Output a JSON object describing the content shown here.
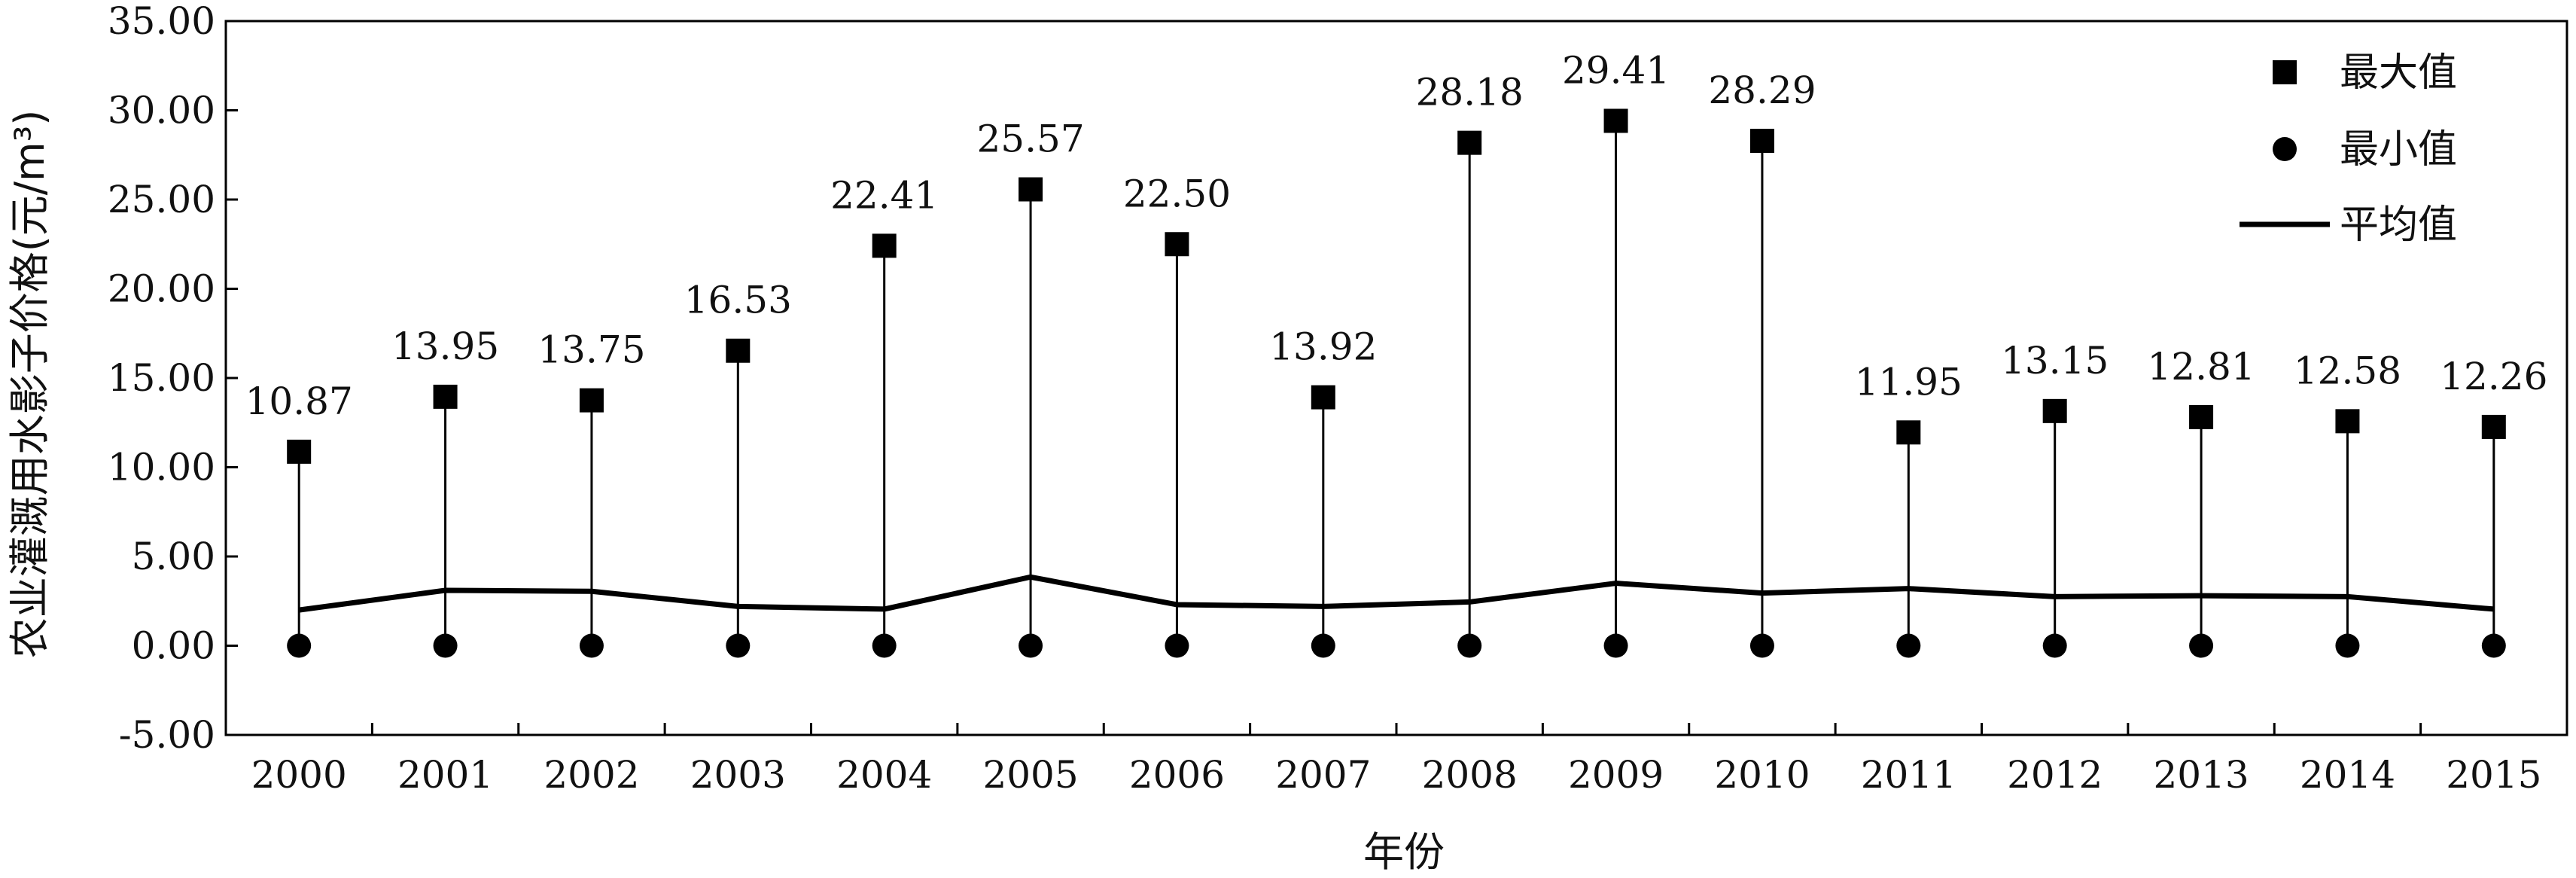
{
  "chart_data": {
    "type": "line",
    "title": "",
    "xlabel": "年份",
    "ylabel": "农业灌溉用水影子价格(元/m³)",
    "categories": [
      "2000",
      "2001",
      "2002",
      "2003",
      "2004",
      "2005",
      "2006",
      "2007",
      "2008",
      "2009",
      "2010",
      "2011",
      "2012",
      "2013",
      "2014",
      "2015"
    ],
    "ylim": [
      -5.0,
      35.0
    ],
    "yticks": [
      "-5.00",
      "0.00",
      "5.00",
      "10.00",
      "15.00",
      "20.00",
      "25.00",
      "30.00",
      "35.00"
    ],
    "ytick_values": [
      -5,
      0,
      5,
      10,
      15,
      20,
      25,
      30,
      35
    ],
    "grid": false,
    "legend_position": "top-right",
    "series": [
      {
        "name": "最大值",
        "marker": "square",
        "values": [
          10.87,
          13.95,
          13.75,
          16.53,
          22.41,
          25.57,
          22.5,
          13.92,
          28.18,
          29.41,
          28.29,
          11.95,
          13.15,
          12.81,
          12.58,
          12.26
        ],
        "labels": [
          "10.87",
          "13.95",
          "13.75",
          "16.53",
          "22.41",
          "25.57",
          "22.50",
          "13.92",
          "28.18",
          "29.41",
          "28.29",
          "11.95",
          "13.15",
          "12.81",
          "12.58",
          "12.26"
        ]
      },
      {
        "name": "最小值",
        "marker": "circle",
        "values": [
          0,
          0,
          0,
          0,
          0,
          0,
          0,
          0,
          0,
          0,
          0,
          0,
          0,
          0,
          0,
          0
        ]
      },
      {
        "name": "平均值",
        "marker": "line",
        "values": [
          2.0,
          3.1,
          3.05,
          2.2,
          2.05,
          3.85,
          2.3,
          2.2,
          2.45,
          3.5,
          2.95,
          3.2,
          2.75,
          2.8,
          2.75,
          2.05
        ]
      }
    ],
    "colors": {
      "ink": "#000000"
    }
  }
}
